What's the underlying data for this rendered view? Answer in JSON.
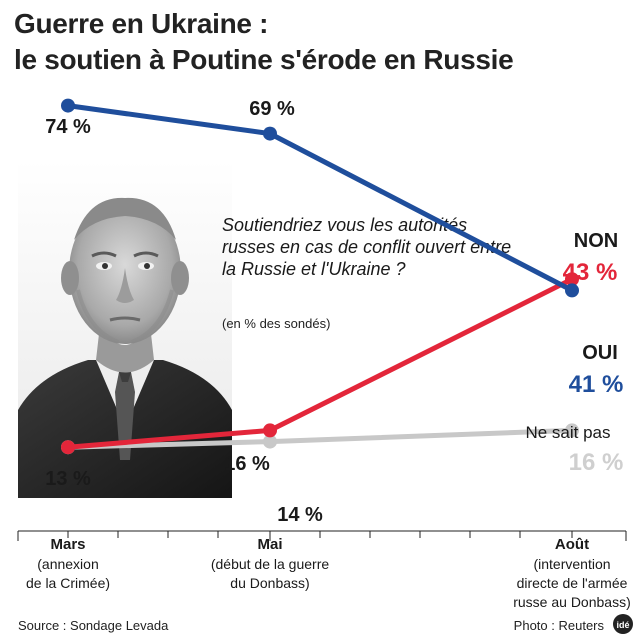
{
  "title": {
    "line1": "Guerre en Ukraine :",
    "line2": "le soutien à Poutine s'érode en Russie"
  },
  "question": {
    "text": "Soutiendriez vous les autorités russes en cas de conflit ouvert entre la Russie et l'Ukraine ?",
    "note": "(en % des sondés)"
  },
  "photo": {
    "icon": "portrait-photo"
  },
  "chart_data": {
    "type": "line",
    "title": "Guerre en Ukraine : le soutien à Poutine s'érode en Russie",
    "categories": [
      "Mars",
      "Mai",
      "Août"
    ],
    "category_notes": [
      [
        "(annexion",
        "de la Crimée)"
      ],
      [
        "(début de la guerre",
        "du Donbass)"
      ],
      [
        "(intervention",
        "directe de l'armée",
        "russe au Donbass)"
      ]
    ],
    "ylim": [
      0,
      80
    ],
    "grid": false,
    "legend": "inline-labels",
    "series": [
      {
        "name": "OUI",
        "color": "#1f4e9c",
        "values": [
          74,
          69,
          41
        ],
        "labels": [
          "74 %",
          "69 %",
          "41 %"
        ]
      },
      {
        "name": "NON",
        "color": "#e3263a",
        "values": [
          13,
          16,
          43
        ],
        "labels": [
          "13 %",
          "16 %",
          "43 %"
        ]
      },
      {
        "name": "Ne sait pas",
        "color": "#c8c8c8",
        "values": [
          13,
          14,
          16
        ],
        "labels": [
          "",
          "14 %",
          "16 %"
        ]
      }
    ]
  },
  "footer": {
    "source": "Source : Sondage Levada",
    "photo_credit": "Photo : Reuters",
    "logo": "idé"
  }
}
